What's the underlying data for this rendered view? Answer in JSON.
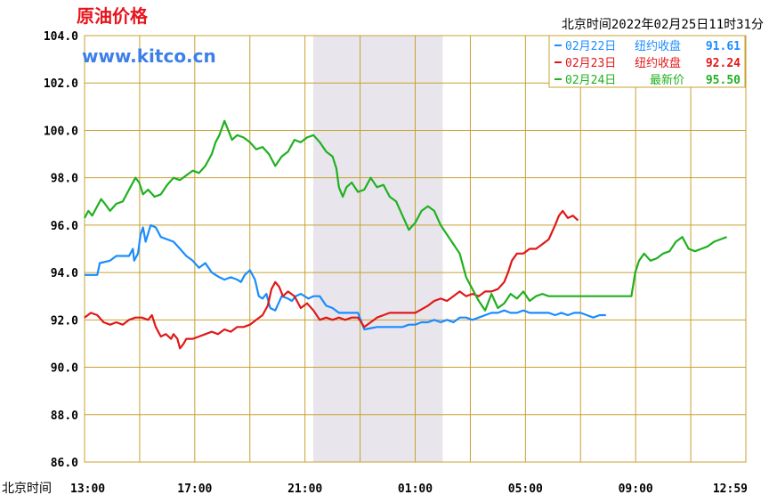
{
  "header": {
    "title": "原油价格",
    "watermark": "www.kitco.cn",
    "timestamp": "北京时间2022年02月25日11时31分"
  },
  "colors": {
    "title": "#e8141c",
    "watermark": "#3d7fe8",
    "grid": "#c8a032",
    "shade": "#e8e6ec",
    "blue": "#1a8cff",
    "red": "#e01818",
    "green": "#20b020"
  },
  "legend": [
    {
      "date": "02月22日",
      "label": "纽约收盘",
      "value": "91.61",
      "color": "#1a8cff"
    },
    {
      "date": "02月23日",
      "label": "纽约收盘",
      "value": "92.24",
      "color": "#e01818"
    },
    {
      "date": "02月24日",
      "label": "最新价",
      "value": "95.50",
      "color": "#20b020"
    }
  ],
  "chart_data": {
    "type": "line",
    "x_axis_label": "北京时间",
    "x_ticks": [
      "13:00",
      "17:00",
      "21:00",
      "01:00",
      "05:00",
      "09:00",
      "12:59"
    ],
    "y_ticks": [
      "104.0",
      "102.0",
      "100.0",
      "98.0",
      "96.0",
      "94.0",
      "92.0",
      "90.0",
      "88.0",
      "86.0"
    ],
    "ylim": [
      86,
      104
    ],
    "xlim_hours": [
      0,
      24
    ],
    "grid": true,
    "shaded_region_hours": [
      8.3,
      13
    ],
    "series": [
      {
        "name": "02月22日",
        "color": "#1a8cff",
        "points": [
          [
            0,
            93.9
          ],
          [
            1,
            93.9
          ],
          [
            1.2,
            94.4
          ],
          [
            2,
            94.5
          ],
          [
            2.5,
            94.7
          ],
          [
            3.5,
            94.7
          ],
          [
            3.8,
            95.0
          ],
          [
            3.9,
            94.5
          ],
          [
            4.2,
            94.8
          ],
          [
            4.4,
            95.6
          ],
          [
            4.6,
            95.9
          ],
          [
            4.8,
            95.3
          ],
          [
            5.2,
            96.0
          ],
          [
            5.6,
            95.9
          ],
          [
            6,
            95.5
          ],
          [
            6.5,
            95.4
          ],
          [
            7,
            95.3
          ],
          [
            7.5,
            95.0
          ],
          [
            8,
            94.7
          ],
          [
            8.5,
            94.5
          ],
          [
            9,
            94.2
          ],
          [
            9.5,
            94.4
          ],
          [
            10,
            94.0
          ],
          [
            10.3,
            93.9
          ],
          [
            10.6,
            93.8
          ],
          [
            11,
            93.7
          ],
          [
            11.5,
            93.8
          ],
          [
            12,
            93.7
          ],
          [
            12.3,
            93.6
          ],
          [
            12.6,
            93.9
          ],
          [
            13,
            94.1
          ],
          [
            13.4,
            93.7
          ],
          [
            13.7,
            93.0
          ],
          [
            14,
            92.9
          ],
          [
            14.3,
            93.1
          ],
          [
            14.6,
            92.5
          ],
          [
            15,
            92.4
          ],
          [
            15.5,
            93.0
          ],
          [
            16,
            92.9
          ],
          [
            16.3,
            92.8
          ],
          [
            16.6,
            93.0
          ],
          [
            17,
            93.1
          ],
          [
            17.3,
            93.0
          ],
          [
            17.6,
            92.9
          ],
          [
            18,
            93.0
          ],
          [
            18.5,
            93.0
          ],
          [
            19,
            92.6
          ],
          [
            19.5,
            92.5
          ],
          [
            20,
            92.3
          ],
          [
            21,
            92.3
          ],
          [
            21.5,
            92.3
          ],
          [
            22,
            91.6
          ],
          [
            23,
            91.7
          ],
          [
            24,
            91.7
          ],
          [
            25,
            91.7
          ],
          [
            25.5,
            91.8
          ],
          [
            26,
            91.8
          ],
          [
            26.5,
            91.9
          ],
          [
            27,
            91.9
          ],
          [
            27.5,
            92.0
          ],
          [
            28,
            91.9
          ],
          [
            28.5,
            92.0
          ],
          [
            29,
            91.9
          ],
          [
            29.5,
            92.1
          ],
          [
            30,
            92.1
          ],
          [
            30.5,
            92.0
          ],
          [
            31,
            92.1
          ],
          [
            31.5,
            92.2
          ],
          [
            32,
            92.3
          ],
          [
            32.5,
            92.3
          ],
          [
            33,
            92.4
          ],
          [
            33.5,
            92.3
          ],
          [
            34,
            92.3
          ],
          [
            34.5,
            92.4
          ],
          [
            35,
            92.3
          ],
          [
            35.5,
            92.3
          ],
          [
            36,
            92.3
          ],
          [
            36.5,
            92.3
          ],
          [
            37,
            92.2
          ],
          [
            37.5,
            92.3
          ],
          [
            38,
            92.2
          ],
          [
            38.5,
            92.3
          ],
          [
            39,
            92.3
          ],
          [
            39.5,
            92.2
          ],
          [
            40,
            92.1
          ],
          [
            40.5,
            92.2
          ],
          [
            41,
            92.2
          ]
        ]
      },
      {
        "name": "02月23日",
        "color": "#e01818",
        "points": [
          [
            0,
            92.1
          ],
          [
            0.5,
            92.3
          ],
          [
            1,
            92.2
          ],
          [
            1.5,
            91.9
          ],
          [
            2,
            91.8
          ],
          [
            2.5,
            91.9
          ],
          [
            3,
            91.8
          ],
          [
            3.5,
            92.0
          ],
          [
            4,
            92.1
          ],
          [
            4.5,
            92.1
          ],
          [
            5,
            92.0
          ],
          [
            5.3,
            92.2
          ],
          [
            5.6,
            91.7
          ],
          [
            6,
            91.3
          ],
          [
            6.4,
            91.4
          ],
          [
            6.8,
            91.2
          ],
          [
            7,
            91.4
          ],
          [
            7.3,
            91.2
          ],
          [
            7.5,
            90.8
          ],
          [
            7.8,
            91.0
          ],
          [
            8,
            91.2
          ],
          [
            8.5,
            91.2
          ],
          [
            9,
            91.3
          ],
          [
            9.5,
            91.4
          ],
          [
            10,
            91.5
          ],
          [
            10.5,
            91.4
          ],
          [
            11,
            91.6
          ],
          [
            11.5,
            91.5
          ],
          [
            12,
            91.7
          ],
          [
            12.5,
            91.7
          ],
          [
            13,
            91.8
          ],
          [
            13.5,
            92.0
          ],
          [
            14,
            92.2
          ],
          [
            14.4,
            92.6
          ],
          [
            14.7,
            93.3
          ],
          [
            15,
            93.6
          ],
          [
            15.3,
            93.4
          ],
          [
            15.6,
            93.0
          ],
          [
            16,
            93.2
          ],
          [
            16.5,
            93.0
          ],
          [
            17,
            92.5
          ],
          [
            17.5,
            92.7
          ],
          [
            18,
            92.4
          ],
          [
            18.5,
            92.0
          ],
          [
            19,
            92.1
          ],
          [
            19.5,
            92.0
          ],
          [
            20,
            92.1
          ],
          [
            20.5,
            92.0
          ],
          [
            21,
            92.1
          ],
          [
            21.5,
            92.1
          ],
          [
            22,
            91.7
          ],
          [
            22.5,
            91.9
          ],
          [
            23,
            92.1
          ],
          [
            23.5,
            92.2
          ],
          [
            24,
            92.3
          ],
          [
            25,
            92.3
          ],
          [
            26,
            92.3
          ],
          [
            27,
            92.6
          ],
          [
            27.5,
            92.8
          ],
          [
            28,
            92.9
          ],
          [
            28.5,
            92.8
          ],
          [
            29,
            93.0
          ],
          [
            29.5,
            93.2
          ],
          [
            30,
            93.0
          ],
          [
            30.5,
            93.1
          ],
          [
            31,
            93.0
          ],
          [
            31.5,
            93.2
          ],
          [
            32,
            93.2
          ],
          [
            32.5,
            93.3
          ],
          [
            33,
            93.6
          ],
          [
            33.3,
            94.0
          ],
          [
            33.6,
            94.5
          ],
          [
            34,
            94.8
          ],
          [
            34.5,
            94.8
          ],
          [
            35,
            95.0
          ],
          [
            35.5,
            95.0
          ],
          [
            36,
            95.2
          ],
          [
            36.5,
            95.4
          ],
          [
            37,
            96.0
          ],
          [
            37.3,
            96.4
          ],
          [
            37.6,
            96.6
          ],
          [
            38,
            96.3
          ],
          [
            38.4,
            96.4
          ],
          [
            38.8,
            96.2
          ]
        ]
      },
      {
        "name": "02月24日",
        "color": "#20b020",
        "points": [
          [
            0,
            96.3
          ],
          [
            0.3,
            96.6
          ],
          [
            0.6,
            96.4
          ],
          [
            1,
            96.8
          ],
          [
            1.3,
            97.1
          ],
          [
            1.6,
            96.9
          ],
          [
            2,
            96.6
          ],
          [
            2.5,
            96.9
          ],
          [
            3,
            97.0
          ],
          [
            3.5,
            97.5
          ],
          [
            4,
            98.0
          ],
          [
            4.3,
            97.8
          ],
          [
            4.6,
            97.3
          ],
          [
            5,
            97.5
          ],
          [
            5.5,
            97.2
          ],
          [
            6,
            97.3
          ],
          [
            6.5,
            97.7
          ],
          [
            7,
            98.0
          ],
          [
            7.5,
            97.9
          ],
          [
            8,
            98.1
          ],
          [
            8.5,
            98.3
          ],
          [
            9,
            98.2
          ],
          [
            9.5,
            98.5
          ],
          [
            10,
            99.0
          ],
          [
            10.3,
            99.5
          ],
          [
            10.6,
            99.8
          ],
          [
            11,
            100.4
          ],
          [
            11.3,
            100.0
          ],
          [
            11.6,
            99.6
          ],
          [
            12,
            99.8
          ],
          [
            12.5,
            99.7
          ],
          [
            13,
            99.5
          ],
          [
            13.5,
            99.2
          ],
          [
            14,
            99.3
          ],
          [
            14.5,
            99.0
          ],
          [
            15,
            98.5
          ],
          [
            15.5,
            98.9
          ],
          [
            16,
            99.1
          ],
          [
            16.5,
            99.6
          ],
          [
            17,
            99.5
          ],
          [
            17.5,
            99.7
          ],
          [
            18,
            99.8
          ],
          [
            18.5,
            99.5
          ],
          [
            19,
            99.1
          ],
          [
            19.5,
            98.9
          ],
          [
            19.8,
            98.4
          ],
          [
            20,
            97.6
          ],
          [
            20.3,
            97.2
          ],
          [
            20.6,
            97.6
          ],
          [
            21,
            97.8
          ],
          [
            21.5,
            97.4
          ],
          [
            22,
            97.5
          ],
          [
            22.5,
            98.0
          ],
          [
            23,
            97.6
          ],
          [
            23.5,
            97.7
          ],
          [
            24,
            97.2
          ],
          [
            24.5,
            97.0
          ],
          [
            25,
            96.4
          ],
          [
            25.5,
            95.8
          ],
          [
            26,
            96.1
          ],
          [
            26.5,
            96.6
          ],
          [
            27,
            96.8
          ],
          [
            27.5,
            96.6
          ],
          [
            28,
            96.0
          ],
          [
            28.5,
            95.6
          ],
          [
            29,
            95.2
          ],
          [
            29.5,
            94.8
          ],
          [
            30,
            93.8
          ],
          [
            30.5,
            93.3
          ],
          [
            31,
            92.8
          ],
          [
            31.5,
            92.4
          ],
          [
            32,
            93.1
          ],
          [
            32.5,
            92.5
          ],
          [
            33,
            92.7
          ],
          [
            33.5,
            93.1
          ],
          [
            34,
            92.9
          ],
          [
            34.5,
            93.2
          ],
          [
            35,
            92.8
          ],
          [
            35.5,
            93.0
          ],
          [
            36,
            93.1
          ],
          [
            36.5,
            93.0
          ],
          [
            37,
            93.0
          ],
          [
            37.5,
            93.0
          ],
          [
            38,
            93.0
          ],
          [
            39,
            93.0
          ],
          [
            40,
            93.0
          ],
          [
            41,
            93.0
          ],
          [
            43,
            93.0
          ],
          [
            43.3,
            94.0
          ],
          [
            43.6,
            94.5
          ],
          [
            44,
            94.8
          ],
          [
            44.5,
            94.5
          ],
          [
            45,
            94.6
          ],
          [
            45.5,
            94.8
          ],
          [
            46,
            94.9
          ],
          [
            46.5,
            95.3
          ],
          [
            47,
            95.5
          ],
          [
            47.5,
            95.0
          ],
          [
            48,
            94.9
          ],
          [
            48.5,
            95.0
          ],
          [
            49,
            95.1
          ],
          [
            49.5,
            95.3
          ],
          [
            50,
            95.4
          ],
          [
            50.5,
            95.5
          ]
        ]
      }
    ]
  }
}
